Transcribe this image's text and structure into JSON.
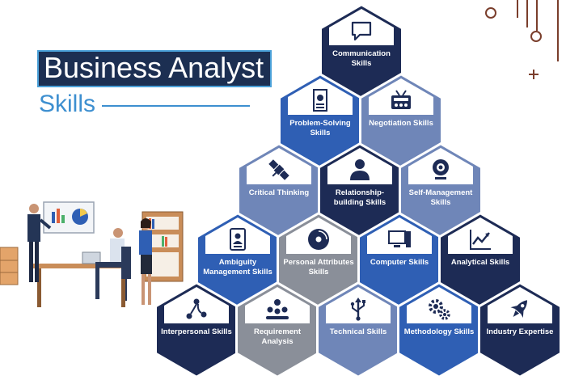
{
  "title": {
    "line1": "Business Analyst",
    "line2": "Skills"
  },
  "colors": {
    "navy": "#1d2b55",
    "blue": "#2f5fb4",
    "steel": "#6f86b8",
    "grey": "#8a8f99",
    "title_bg": "#1c2f52",
    "accent": "#3d8fd0"
  },
  "skills": [
    {
      "label": "Communication Skills",
      "icon": "speech-bubble-icon",
      "color": "navy"
    },
    {
      "label": "Problem-Solving Skills",
      "icon": "document-chart-icon",
      "color": "blue"
    },
    {
      "label": "Negotiation Skills",
      "icon": "radio-icon",
      "color": "steel"
    },
    {
      "label": "Critical Thinking",
      "icon": "satellite-icon",
      "color": "steel"
    },
    {
      "label": "Relationship-building Skills",
      "icon": "person-icon",
      "color": "navy"
    },
    {
      "label": "Self-Management Skills",
      "icon": "webcam-icon",
      "color": "steel"
    },
    {
      "label": "Ambiguity Management Skills",
      "icon": "id-badge-icon",
      "color": "blue"
    },
    {
      "label": "Personal Attributes Skills",
      "icon": "disc-icon",
      "color": "grey"
    },
    {
      "label": "Computer Skills",
      "icon": "computer-icon",
      "color": "blue"
    },
    {
      "label": "Analytical Skills",
      "icon": "line-chart-icon",
      "color": "navy"
    },
    {
      "label": "Interpersonal Skills",
      "icon": "nodes-icon",
      "color": "navy"
    },
    {
      "label": "Requirement Analysis",
      "icon": "team-icon",
      "color": "grey"
    },
    {
      "label": "Technical Skills",
      "icon": "usb-icon",
      "color": "steel"
    },
    {
      "label": "Methodology Skills",
      "icon": "gears-icon",
      "color": "blue"
    },
    {
      "label": "Industry Expertise",
      "icon": "rocket-icon",
      "color": "navy"
    }
  ]
}
